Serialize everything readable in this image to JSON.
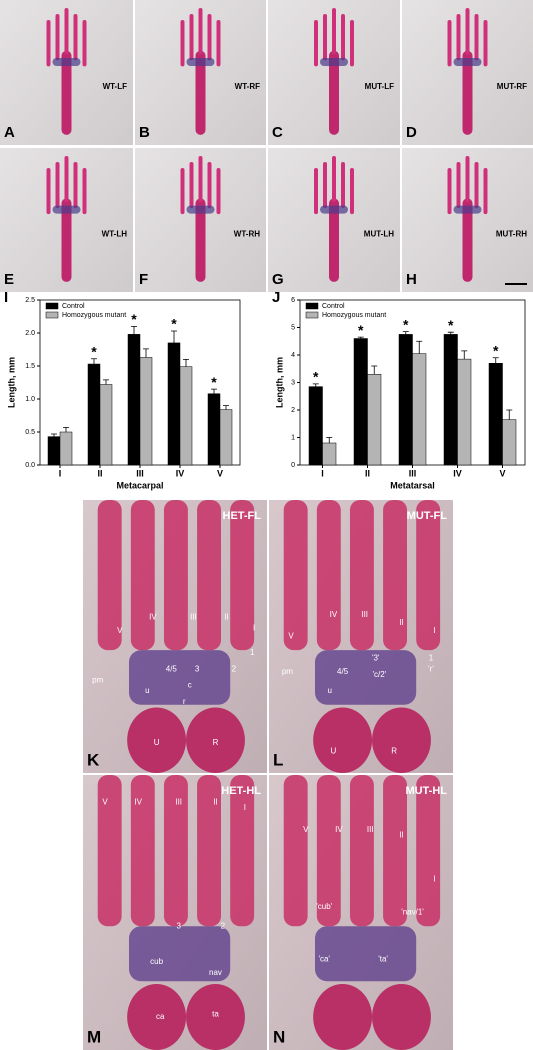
{
  "panels": [
    {
      "letter": "A",
      "label": "WT-LF"
    },
    {
      "letter": "B",
      "label": "WT-RF"
    },
    {
      "letter": "C",
      "label": "MUT-LF"
    },
    {
      "letter": "D",
      "label": "MUT-RF"
    },
    {
      "letter": "E",
      "label": "WT-LH"
    },
    {
      "letter": "F",
      "label": "WT-RH"
    },
    {
      "letter": "G",
      "label": "MUT-LH"
    },
    {
      "letter": "H",
      "label": "MUT-RH"
    },
    {
      "letter": "K",
      "label": "HET-FL",
      "bones": [
        "V",
        "IV",
        "III",
        "II",
        "I",
        "1",
        "2",
        "3",
        "4/5",
        "c",
        "u",
        "r",
        "pm",
        "U",
        "R"
      ]
    },
    {
      "letter": "L",
      "label": "MUT-FL",
      "bones": [
        "V",
        "IV",
        "III",
        "II",
        "I",
        "1",
        "'r'",
        "'3'",
        "'c/2'",
        "4/5",
        "u",
        "pm",
        "U",
        "R"
      ]
    },
    {
      "letter": "M",
      "label": "HET-HL",
      "bones": [
        "V",
        "IV",
        "III",
        "II",
        "I",
        "3",
        "2",
        "cub",
        "nav",
        "ca",
        "ta"
      ]
    },
    {
      "letter": "N",
      "label": "MUT-HL",
      "bones": [
        "V",
        "IV",
        "III",
        "II",
        "I",
        "'cub'",
        "'nav/1'",
        "'ca'",
        "'ta'"
      ]
    }
  ],
  "chart_data": [
    {
      "type": "bar",
      "letter": "I",
      "y_label": "Length, mm",
      "x_label": "Metacarpal",
      "categories": [
        "I",
        "II",
        "III",
        "IV",
        "V"
      ],
      "ylim": [
        0,
        2.5
      ],
      "yticks": [
        {
          "value": 0,
          "label": "0.0"
        },
        0.5,
        {
          "value": 1,
          "label": "1.0"
        },
        1.5,
        {
          "value": 2,
          "label": "2.0"
        },
        2.5
      ],
      "series": [
        {
          "name": "Control",
          "color": "#000000",
          "values": [
            0.43,
            1.53,
            1.98,
            1.85,
            1.08
          ],
          "errors": [
            0.04,
            0.08,
            0.12,
            0.18,
            0.07
          ]
        },
        {
          "name": "Homozygous mutant",
          "color": "#b4b4b4",
          "values": [
            0.5,
            1.22,
            1.63,
            1.49,
            0.84
          ],
          "errors": [
            0.07,
            0.07,
            0.13,
            0.11,
            0.06
          ]
        }
      ],
      "significance_marks": [
        null,
        "*",
        "*",
        "*",
        "*"
      ]
    },
    {
      "type": "bar",
      "letter": "J",
      "y_label": "Length, mm",
      "x_label": "Metatarsal",
      "categories": [
        "I",
        "II",
        "III",
        "IV",
        "V"
      ],
      "ylim": [
        0,
        6
      ],
      "yticks": [
        0,
        1,
        2,
        3,
        4,
        5,
        6
      ],
      "series": [
        {
          "name": "Control",
          "color": "#000000",
          "values": [
            2.85,
            4.6,
            4.75,
            4.75,
            3.7
          ],
          "errors": [
            0.1,
            0.05,
            0.1,
            0.08,
            0.2
          ]
        },
        {
          "name": "Homozygous mutant",
          "color": "#b4b4b4",
          "values": [
            0.8,
            3.3,
            4.05,
            3.85,
            1.65
          ],
          "errors": [
            0.2,
            0.3,
            0.45,
            0.3,
            0.35
          ]
        }
      ],
      "significance_marks": [
        "*",
        "*",
        "*",
        "*",
        "*"
      ]
    }
  ]
}
